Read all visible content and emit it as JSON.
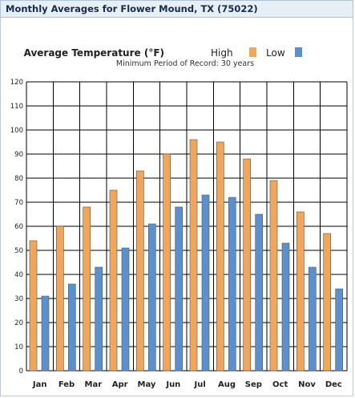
{
  "header": {
    "title": "Monthly Averages for Flower Mound, TX (75022)"
  },
  "chart_data": {
    "type": "bar",
    "title": "Average Temperature (°F)",
    "subtitle": "Minimum Period of Record: 30 years",
    "categories": [
      "Jan",
      "Feb",
      "Mar",
      "Apr",
      "May",
      "Jun",
      "Jul",
      "Aug",
      "Sep",
      "Oct",
      "Nov",
      "Dec"
    ],
    "series": [
      {
        "name": "High",
        "color": "#f2a65a",
        "values": [
          54,
          60,
          68,
          75,
          83,
          90,
          96,
          95,
          88,
          79,
          66,
          57
        ]
      },
      {
        "name": "Low",
        "color": "#5a8fd0",
        "values": [
          31,
          36,
          43,
          51,
          61,
          68,
          73,
          72,
          65,
          53,
          43,
          34
        ]
      }
    ],
    "ylim": [
      0,
      120
    ],
    "yticks": [
      0,
      10,
      20,
      30,
      40,
      50,
      60,
      70,
      80,
      90,
      100,
      110,
      120
    ],
    "grid": true,
    "legend": "top"
  }
}
